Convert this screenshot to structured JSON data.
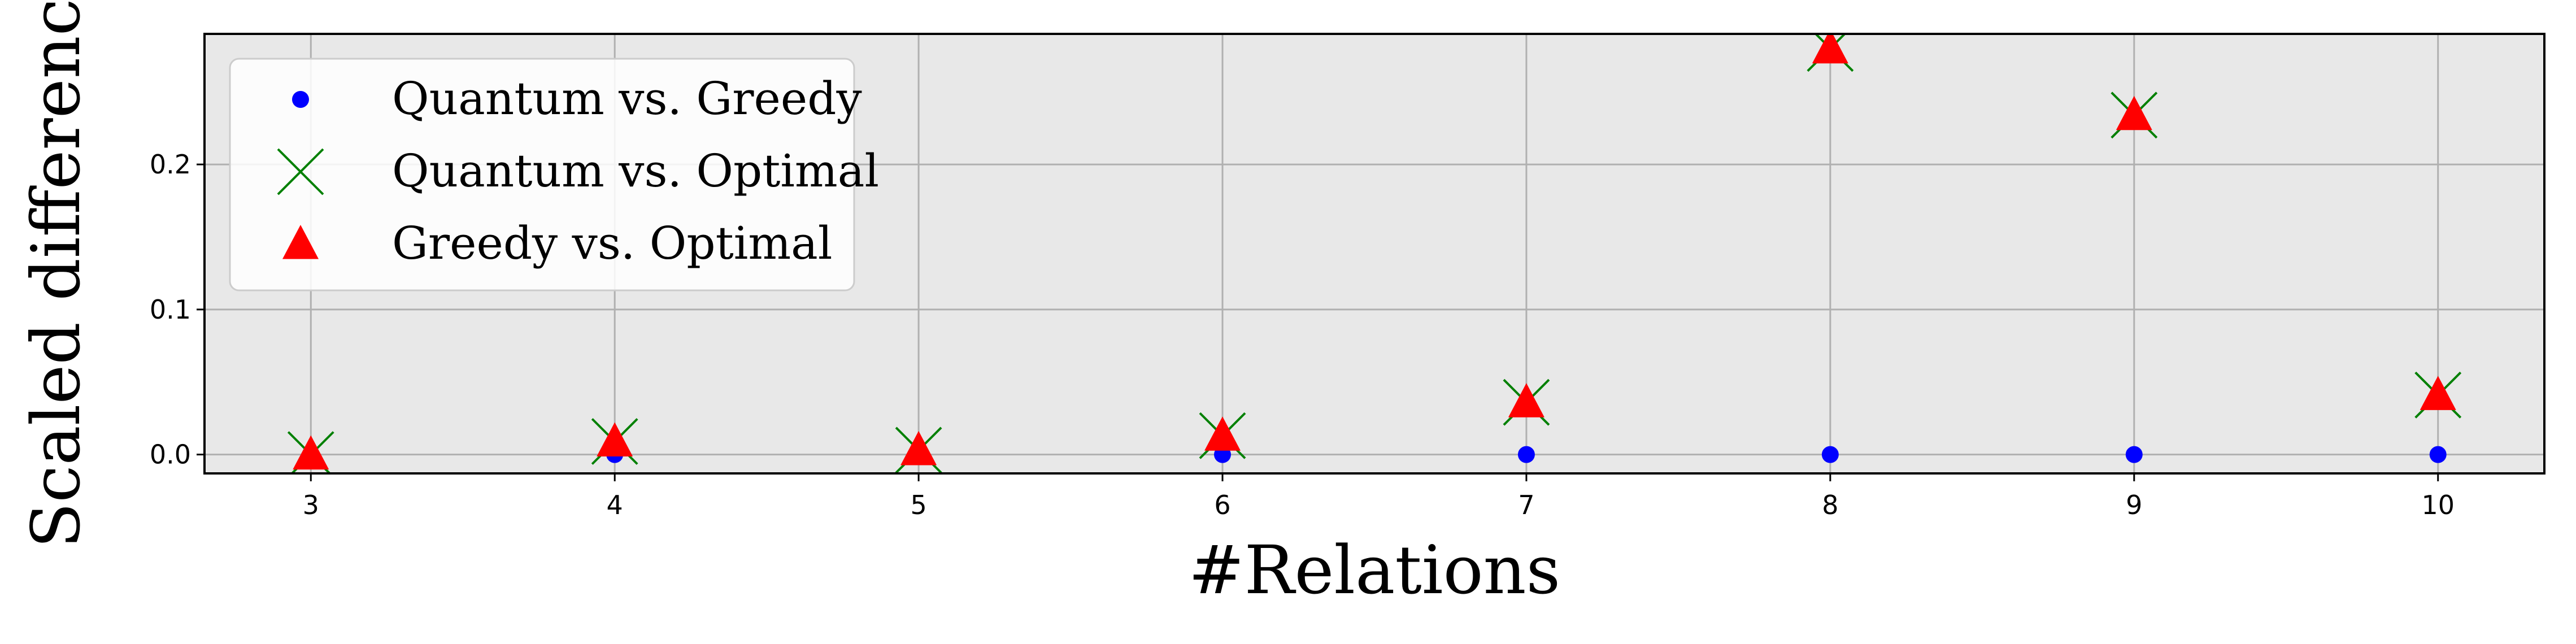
{
  "chart_data": {
    "type": "scatter",
    "xlabel": "#Relations",
    "ylabel": "Scaled difference",
    "x": [
      3,
      4,
      5,
      6,
      7,
      8,
      9,
      10
    ],
    "x_ticks": [
      "3",
      "4",
      "5",
      "6",
      "7",
      "8",
      "9",
      "10"
    ],
    "y_ticks": [
      "0.0",
      "0.1",
      "0.2"
    ],
    "xlim": [
      2.65,
      10.35
    ],
    "ylim": [
      -0.013,
      0.29
    ],
    "grid": true,
    "legend_position": "top-left",
    "series": [
      {
        "name": "Quantum vs. Greedy",
        "marker": "circle",
        "color": "#0000ff",
        "values": [
          0.0,
          0.0,
          0.0,
          0.0,
          0.0,
          0.0,
          0.0,
          0.0
        ]
      },
      {
        "name": "Quantum vs. Optimal",
        "marker": "x",
        "color": "#008000",
        "values": [
          0.0,
          0.009,
          0.003,
          0.013,
          0.036,
          0.28,
          0.234,
          0.041
        ]
      },
      {
        "name": "Greedy vs. Optimal",
        "marker": "triangle",
        "color": "#ff0000",
        "values": [
          0.0,
          0.009,
          0.003,
          0.013,
          0.036,
          0.28,
          0.234,
          0.041
        ]
      }
    ]
  }
}
